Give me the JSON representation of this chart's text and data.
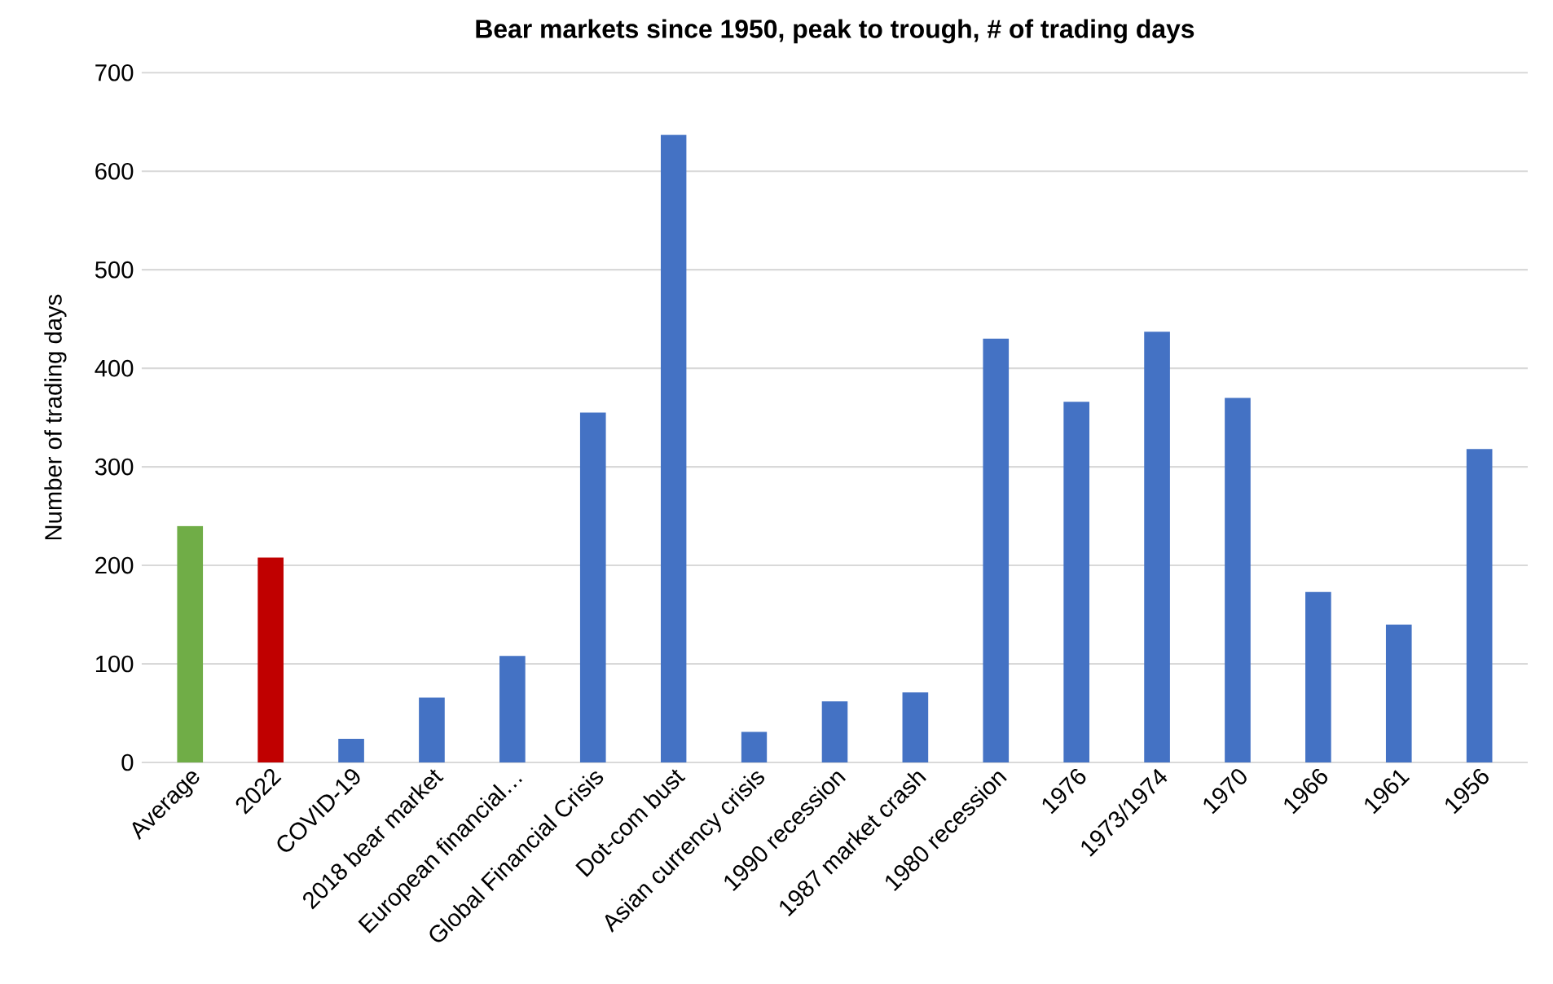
{
  "chart_data": {
    "type": "bar",
    "title": "Bear markets since 1950, peak to trough, # of trading days",
    "ylabel": "Number of trading days",
    "categories": [
      "Average",
      "2022",
      "COVID-19",
      "2018 bear market",
      "European financial…",
      "Global Financial Crisis",
      "Dot-com bust",
      "Asian currency crisis",
      "1990 recession",
      "1987 market crash",
      "1980 recession",
      "1976",
      "1973/1974",
      "1970",
      "1966",
      "1961",
      "1956"
    ],
    "values": [
      240,
      208,
      24,
      66,
      108,
      355,
      637,
      31,
      62,
      71,
      430,
      366,
      437,
      370,
      173,
      140,
      318
    ],
    "colors": [
      "#70ad47",
      "#c00000",
      "#4472c4",
      "#4472c4",
      "#4472c4",
      "#4472c4",
      "#4472c4",
      "#4472c4",
      "#4472c4",
      "#4472c4",
      "#4472c4",
      "#4472c4",
      "#4472c4",
      "#4472c4",
      "#4472c4",
      "#4472c4",
      "#4472c4"
    ],
    "ylim": [
      0,
      700
    ],
    "yticks": [
      0,
      100,
      200,
      300,
      400,
      500,
      600,
      700
    ],
    "grid": "y"
  }
}
